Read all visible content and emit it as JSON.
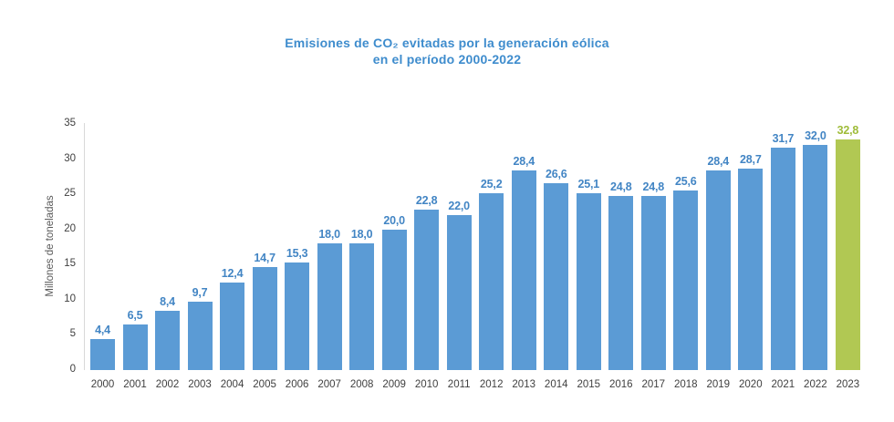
{
  "title": {
    "line1": "Emisiones de CO₂ evitadas por la generación eólica",
    "line2": "en el período 2000-2022"
  },
  "colors": {
    "title": "#3e8ccd",
    "axis_line": "#d9d9d9",
    "tick_text": "#404040",
    "y_axis_title_text": "#595959"
  },
  "chart_data": {
    "type": "bar",
    "categories": [
      "2000",
      "2001",
      "2002",
      "2003",
      "2004",
      "2005",
      "2006",
      "2007",
      "2008",
      "2009",
      "2010",
      "2011",
      "2012",
      "2013",
      "2014",
      "2015",
      "2016",
      "2017",
      "2018",
      "2019",
      "2020",
      "2021",
      "2022",
      "2023"
    ],
    "values": [
      4.4,
      6.5,
      8.4,
      9.7,
      12.4,
      14.7,
      15.3,
      18.0,
      18.0,
      20.0,
      22.8,
      22.0,
      25.2,
      28.4,
      26.6,
      25.1,
      24.8,
      24.8,
      25.6,
      28.4,
      28.7,
      31.7,
      32.0,
      32.8
    ],
    "value_labels": [
      "4,4",
      "6,5",
      "8,4",
      "9,7",
      "12,4",
      "14,7",
      "15,3",
      "18,0",
      "18,0",
      "20,0",
      "22,8",
      "22,0",
      "25,2",
      "28,4",
      "26,6",
      "25,1",
      "24,8",
      "24,8",
      "25,6",
      "28,4",
      "28,7",
      "31,7",
      "32,0",
      "32,8"
    ],
    "title": "Emisiones de CO₂ evitadas por la generación eólica en el período 2000-2022",
    "xlabel": "",
    "ylabel": "Millones de toneladas",
    "ylim": [
      0,
      35
    ],
    "yticks": [
      0,
      5,
      10,
      15,
      20,
      25,
      30,
      35
    ],
    "grid": false,
    "legend": false,
    "bar_color": "#5b9bd5",
    "label_color": "#4285c4",
    "highlight_index": 23,
    "highlight_color": "#b1c853",
    "highlight_label_color": "#9fbc3a"
  }
}
